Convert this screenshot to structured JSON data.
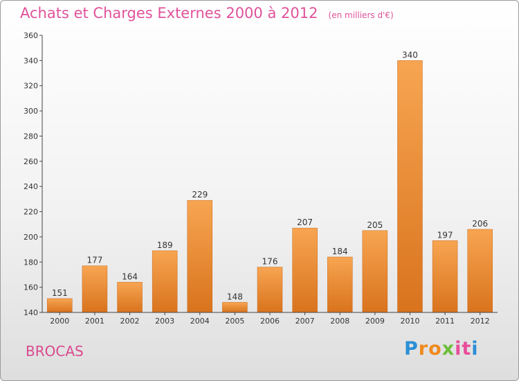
{
  "title": "Achats et Charges Externes 2000 à 2012",
  "unit_note": "(en milliers d'€)",
  "commune": "BROCAS",
  "logo": {
    "letters": [
      "P",
      "r",
      "o",
      "x",
      "i",
      "t",
      "i"
    ],
    "colors": [
      "#2a8fd6",
      "#f08a1e",
      "#f08a1e",
      "#6cbe3a",
      "#e94e9b",
      "#e94e9b",
      "#2a8fd6"
    ]
  },
  "colors": {
    "bar_top": "#f7a552",
    "bar_bottom": "#d9731d",
    "axis": "#444444"
  },
  "chart_data": {
    "type": "bar",
    "categories": [
      "2000",
      "2001",
      "2002",
      "2003",
      "2004",
      "2005",
      "2006",
      "2007",
      "2008",
      "2009",
      "2010",
      "2011",
      "2012"
    ],
    "values": [
      151,
      177,
      164,
      189,
      229,
      148,
      176,
      207,
      184,
      205,
      340,
      197,
      206
    ],
    "ylim": [
      140,
      360
    ],
    "yticks": [
      140,
      160,
      180,
      200,
      220,
      240,
      260,
      280,
      300,
      320,
      340,
      360
    ],
    "grid": false,
    "title": "Achats et Charges Externes 2000 à 2012",
    "xlabel": "",
    "ylabel": ""
  }
}
